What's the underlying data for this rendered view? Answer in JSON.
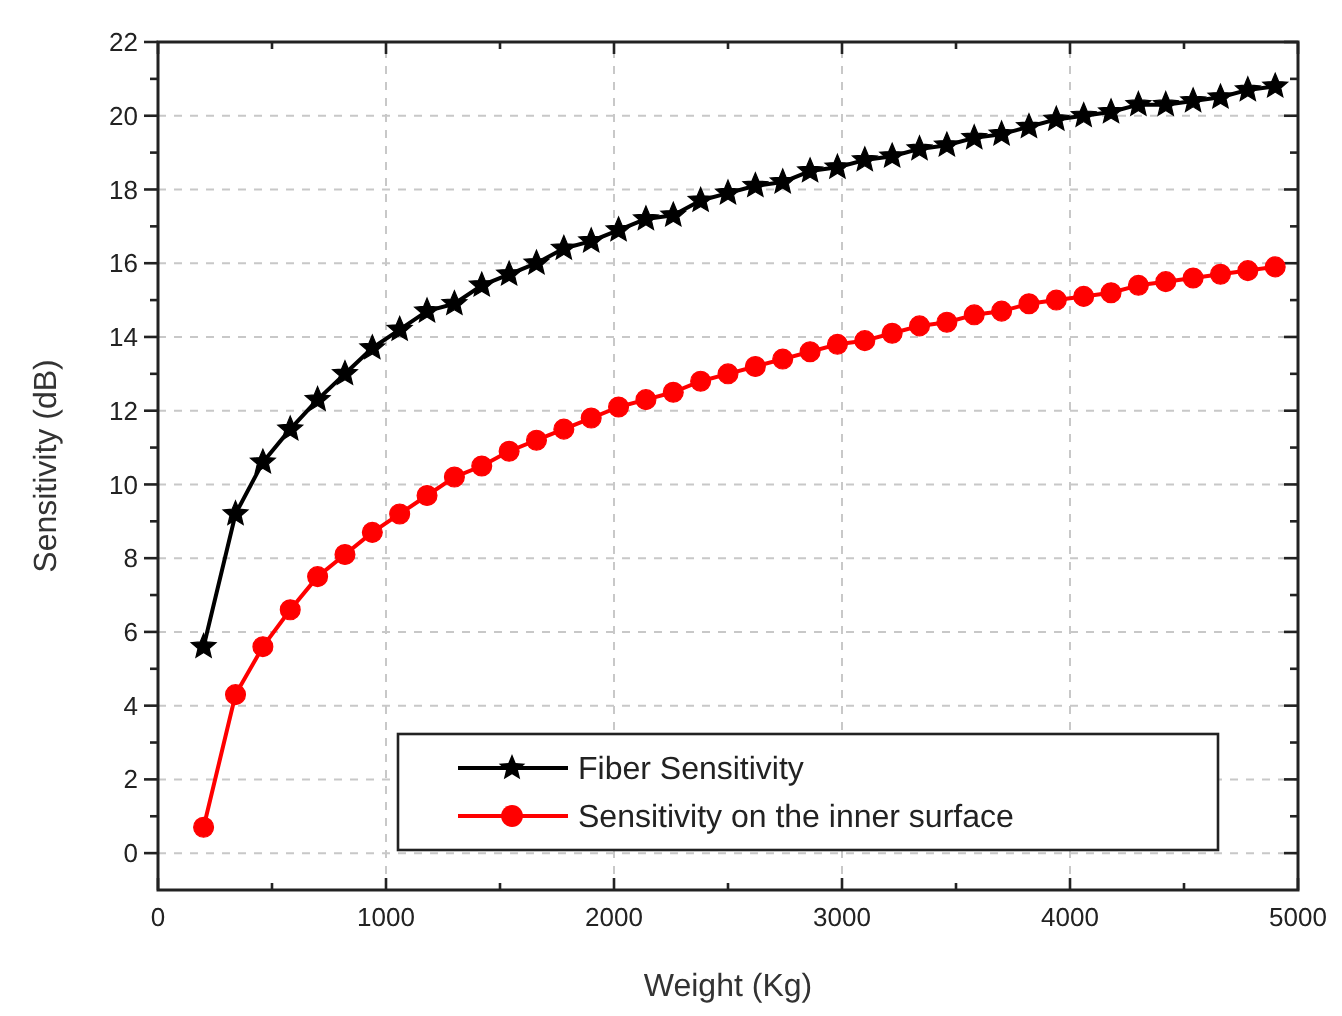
{
  "chart_data": {
    "type": "line",
    "xlabel": "Weight (Kg)",
    "ylabel": "Sensitivity (dB)",
    "x": [
      200,
      340,
      460,
      580,
      700,
      820,
      940,
      1060,
      1180,
      1300,
      1420,
      1540,
      1660,
      1780,
      1900,
      2020,
      2140,
      2260,
      2380,
      2500,
      2620,
      2740,
      2860,
      2980,
      3100,
      3220,
      3340,
      3460,
      3580,
      3700,
      3820,
      3940,
      4060,
      4180,
      4300,
      4420,
      4540,
      4660,
      4780,
      4900
    ],
    "series": [
      {
        "name": "Fiber Sensitivity",
        "color": "#000000",
        "marker": "star",
        "values": [
          5.6,
          9.2,
          10.6,
          11.5,
          12.3,
          13.0,
          13.7,
          14.2,
          14.7,
          14.9,
          15.4,
          15.7,
          16.0,
          16.4,
          16.6,
          16.9,
          17.2,
          17.3,
          17.7,
          17.9,
          18.1,
          18.2,
          18.5,
          18.6,
          18.8,
          18.9,
          19.1,
          19.2,
          19.4,
          19.5,
          19.7,
          19.9,
          20.0,
          20.1,
          20.3,
          20.3,
          20.4,
          20.5,
          20.7,
          20.8
        ]
      },
      {
        "name": "Sensitivity on the inner surface",
        "color": "#ff0000",
        "marker": "circle",
        "values": [
          0.7,
          4.3,
          5.6,
          6.6,
          7.5,
          8.1,
          8.7,
          9.2,
          9.7,
          10.2,
          10.5,
          10.9,
          11.2,
          11.5,
          11.8,
          12.1,
          12.3,
          12.5,
          12.8,
          13.0,
          13.2,
          13.4,
          13.6,
          13.8,
          13.9,
          14.1,
          14.3,
          14.4,
          14.6,
          14.7,
          14.9,
          15.0,
          15.1,
          15.2,
          15.4,
          15.5,
          15.6,
          15.7,
          15.8,
          15.9
        ]
      }
    ],
    "xlim": [
      0,
      5000
    ],
    "ylim": [
      -1,
      22
    ],
    "xticks": [
      0,
      {
        "value": 500,
        "label": null
      },
      1000,
      {
        "value": 1500,
        "label": null
      },
      2000,
      {
        "value": 2500,
        "label": null
      },
      3000,
      {
        "value": 3500,
        "label": null
      },
      4000,
      {
        "value": 4500,
        "label": null
      },
      5000
    ],
    "yticks": [
      0,
      {
        "value": 1,
        "label": null
      },
      2,
      {
        "value": 3,
        "label": null
      },
      4,
      {
        "value": 5,
        "label": null
      },
      6,
      {
        "value": 7,
        "label": null
      },
      8,
      {
        "value": 9,
        "label": null
      },
      10,
      {
        "value": 11,
        "label": null
      },
      12,
      {
        "value": 13,
        "label": null
      },
      14,
      {
        "value": 15,
        "label": null
      },
      16,
      {
        "value": 17,
        "label": null
      },
      18,
      {
        "value": 19,
        "label": null
      },
      20,
      {
        "value": 21,
        "label": null
      },
      22
    ],
    "grid": true,
    "legend": "bottom right",
    "line_style": "solid"
  }
}
